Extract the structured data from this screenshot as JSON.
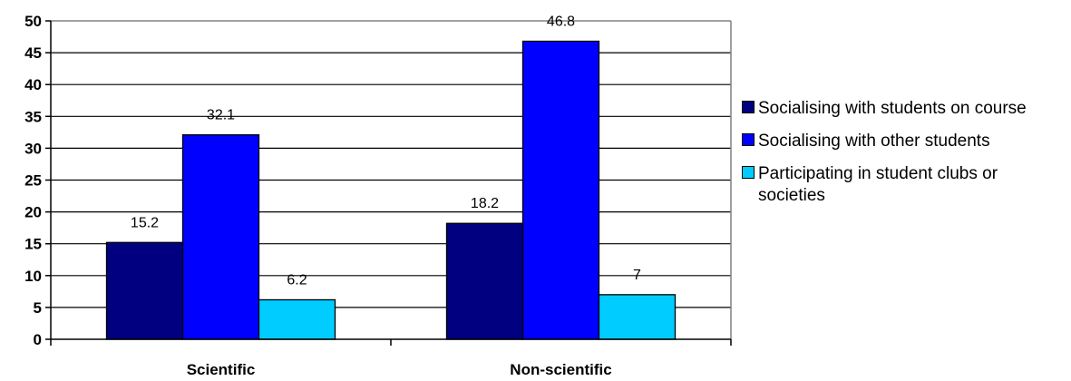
{
  "chart_data": {
    "type": "bar",
    "categories": [
      "Scientific",
      "Non-scientific"
    ],
    "series": [
      {
        "name": "Socialising with students on course",
        "values": [
          15.2,
          18.2
        ],
        "color": "#000080"
      },
      {
        "name": "Socialising with other students",
        "values": [
          32.1,
          46.8
        ],
        "color": "#0000FF"
      },
      {
        "name": "Participating in student clubs or societies",
        "values": [
          6.2,
          7
        ],
        "color": "#00CCFF"
      }
    ],
    "data_labels": [
      [
        "15.2",
        "18.2"
      ],
      [
        "32.1",
        "46.8"
      ],
      [
        "6.2",
        "7"
      ]
    ],
    "yticks": [
      "0",
      "5",
      "10",
      "15",
      "20",
      "25",
      "30",
      "35",
      "40",
      "45",
      "50"
    ],
    "ylim": [
      0,
      50
    ],
    "title": "",
    "xlabel": "",
    "ylabel": "",
    "grid": true,
    "legend_position": "right"
  }
}
